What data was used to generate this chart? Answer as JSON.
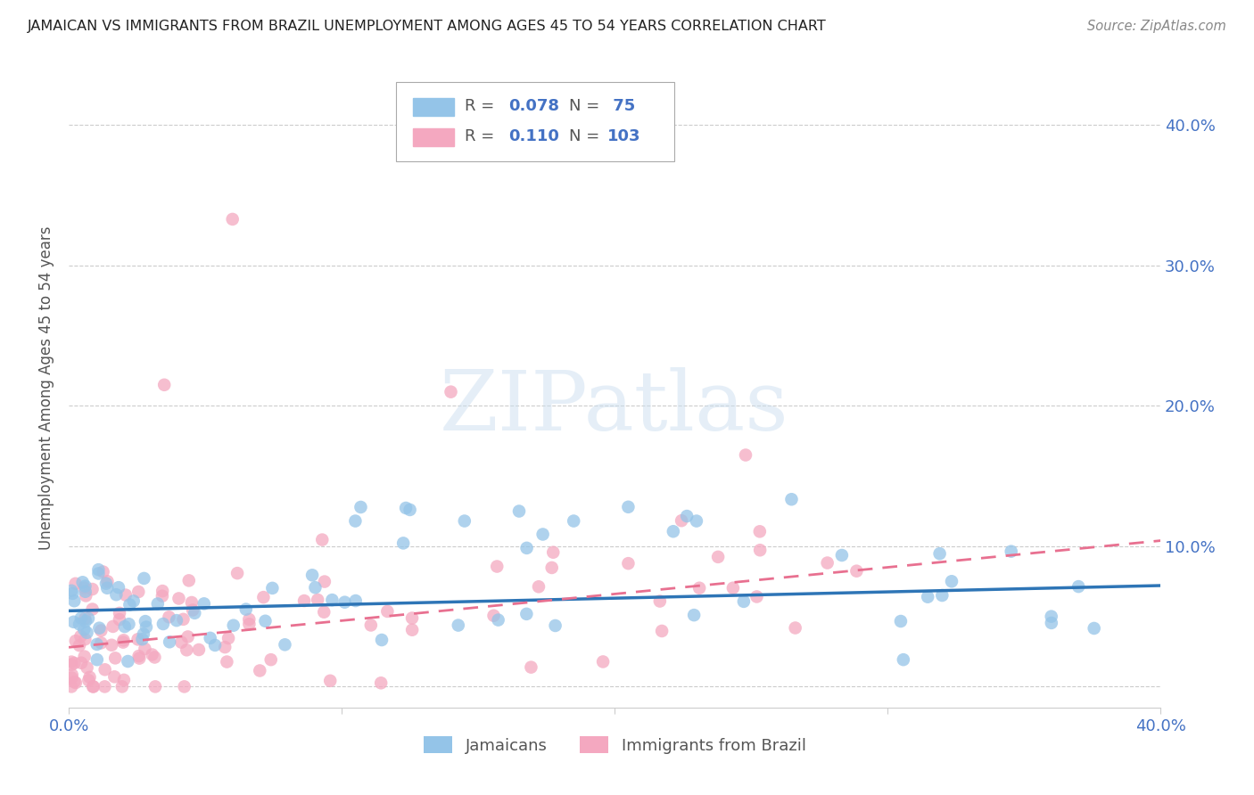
{
  "title": "JAMAICAN VS IMMIGRANTS FROM BRAZIL UNEMPLOYMENT AMONG AGES 45 TO 54 YEARS CORRELATION CHART",
  "source": "Source: ZipAtlas.com",
  "ylabel": "Unemployment Among Ages 45 to 54 years",
  "xlim": [
    0.0,
    0.4
  ],
  "ylim": [
    -0.015,
    0.44
  ],
  "series1_label": "Jamaicans",
  "series1_color": "#94c4e8",
  "series1_line_color": "#2e75b6",
  "series1_R": 0.078,
  "series1_N": 75,
  "series2_label": "Immigrants from Brazil",
  "series2_color": "#f4a8c0",
  "series2_line_color": "#e87090",
  "series2_R": 0.11,
  "series2_N": 103,
  "trendline1_x0": 0.0,
  "trendline1_y0": 0.054,
  "trendline1_x1": 0.4,
  "trendline1_y1": 0.072,
  "trendline2_x0": 0.0,
  "trendline2_y0": 0.028,
  "trendline2_x1": 0.4,
  "trendline2_y1": 0.104,
  "watermark": "ZIPatlas",
  "background_color": "#ffffff",
  "title_color": "#222222",
  "axis_color": "#4472c4",
  "grid_color": "#cccccc",
  "seed1": 42,
  "seed2": 99
}
